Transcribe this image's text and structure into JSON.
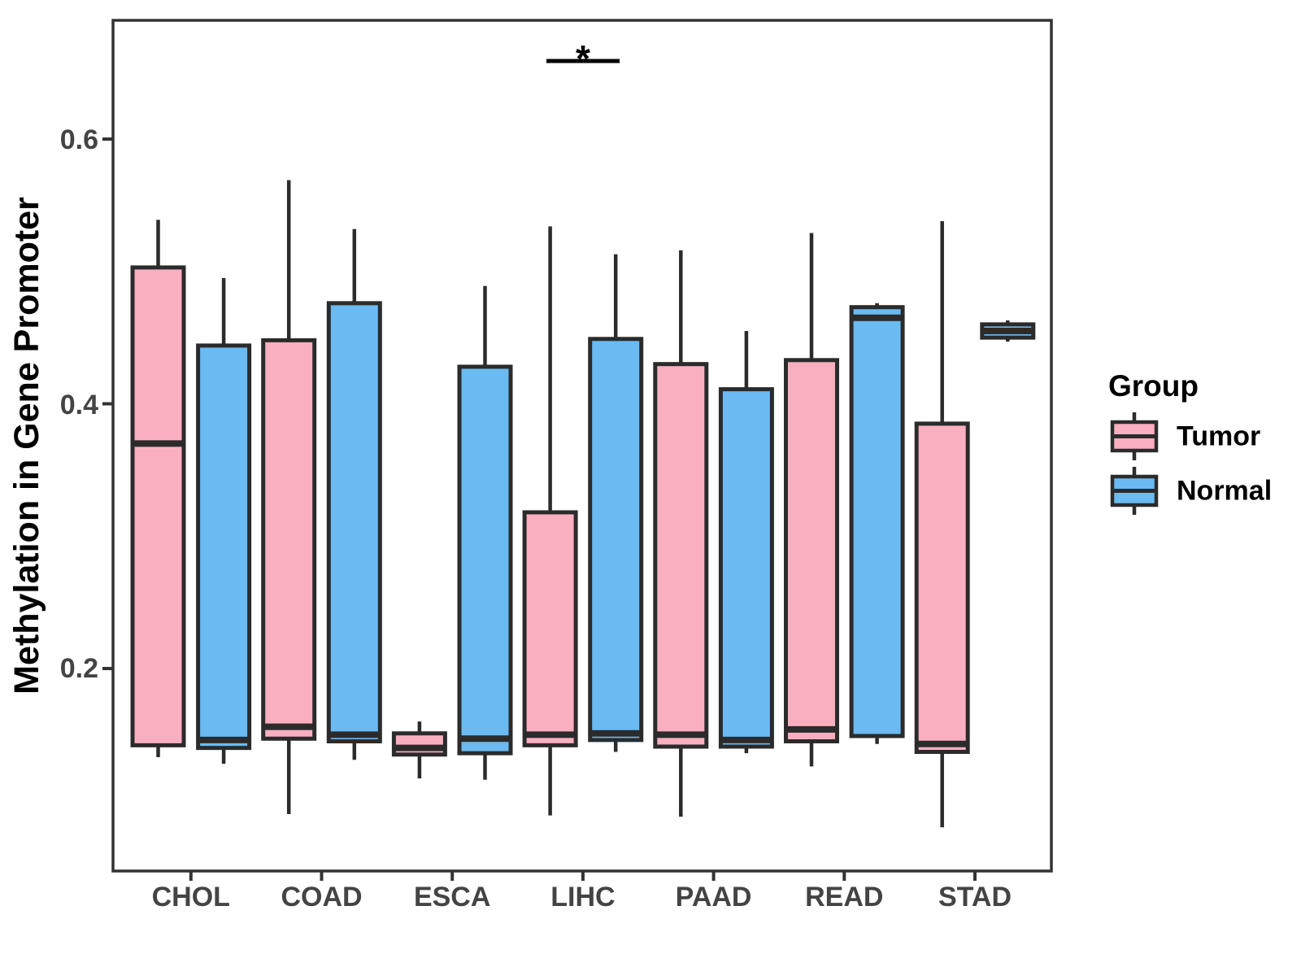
{
  "chart_data": {
    "type": "boxplot",
    "title": "",
    "xlabel": "",
    "ylabel": "Methylation in Gene Promoter",
    "categories": [
      "CHOL",
      "COAD",
      "ESCA",
      "LIHC",
      "PAAD",
      "READ",
      "STAD"
    ],
    "yticks": [
      0.2,
      0.4,
      0.6
    ],
    "ytick_labels": [
      "0.2",
      "0.4",
      "0.6"
    ],
    "ylim": [
      0.05,
      0.69
    ],
    "grid": false,
    "legend_position": "right",
    "legend_title": "Group",
    "series": [
      {
        "name": "Tumor",
        "color": "#FAAFC1",
        "boxes": [
          {
            "category": "CHOL",
            "whisker_low": 0.133,
            "q1": 0.142,
            "median": 0.37,
            "q3": 0.503,
            "whisker_high": 0.539
          },
          {
            "category": "COAD",
            "whisker_low": 0.09,
            "q1": 0.147,
            "median": 0.156,
            "q3": 0.448,
            "whisker_high": 0.569
          },
          {
            "category": "ESCA",
            "whisker_low": 0.117,
            "q1": 0.135,
            "median": 0.14,
            "q3": 0.151,
            "whisker_high": 0.16
          },
          {
            "category": "LIHC",
            "whisker_low": 0.089,
            "q1": 0.142,
            "median": 0.15,
            "q3": 0.318,
            "whisker_high": 0.534
          },
          {
            "category": "PAAD",
            "whisker_low": 0.088,
            "q1": 0.141,
            "median": 0.15,
            "q3": 0.43,
            "whisker_high": 0.516
          },
          {
            "category": "READ",
            "whisker_low": 0.126,
            "q1": 0.145,
            "median": 0.154,
            "q3": 0.433,
            "whisker_high": 0.529
          },
          {
            "category": "STAD",
            "whisker_low": 0.08,
            "q1": 0.137,
            "median": 0.143,
            "q3": 0.385,
            "whisker_high": 0.538
          }
        ]
      },
      {
        "name": "Normal",
        "color": "#6BBAF2",
        "boxes": [
          {
            "category": "CHOL",
            "whisker_low": 0.128,
            "q1": 0.14,
            "median": 0.146,
            "q3": 0.444,
            "whisker_high": 0.495
          },
          {
            "category": "COAD",
            "whisker_low": 0.131,
            "q1": 0.145,
            "median": 0.15,
            "q3": 0.476,
            "whisker_high": 0.532
          },
          {
            "category": "ESCA",
            "whisker_low": 0.116,
            "q1": 0.136,
            "median": 0.147,
            "q3": 0.428,
            "whisker_high": 0.489
          },
          {
            "category": "LIHC",
            "whisker_low": 0.137,
            "q1": 0.146,
            "median": 0.151,
            "q3": 0.449,
            "whisker_high": 0.513
          },
          {
            "category": "PAAD",
            "whisker_low": 0.136,
            "q1": 0.141,
            "median": 0.146,
            "q3": 0.411,
            "whisker_high": 0.455
          },
          {
            "category": "READ",
            "whisker_low": 0.143,
            "q1": 0.149,
            "median": 0.465,
            "q3": 0.473,
            "whisker_high": 0.476
          },
          {
            "category": "STAD",
            "whisker_low": 0.447,
            "q1": 0.45,
            "median": 0.455,
            "q3": 0.46,
            "whisker_high": 0.463
          }
        ]
      }
    ],
    "annotations": [
      {
        "type": "significance-bracket",
        "category": "LIHC",
        "between": [
          "Tumor",
          "Normal"
        ],
        "label": "*"
      }
    ]
  },
  "legend": {
    "title": "Group",
    "items": [
      {
        "label": "Tumor",
        "color": "#FAAFC1"
      },
      {
        "label": "Normal",
        "color": "#6BBAF2"
      }
    ]
  },
  "colors": {
    "tumor_fill": "#FAAFC1",
    "normal_fill": "#6BBAF2",
    "box_border": "#2B2B2B",
    "axis_line": "#333333",
    "tick_label": "#444444",
    "text": "#000000"
  }
}
